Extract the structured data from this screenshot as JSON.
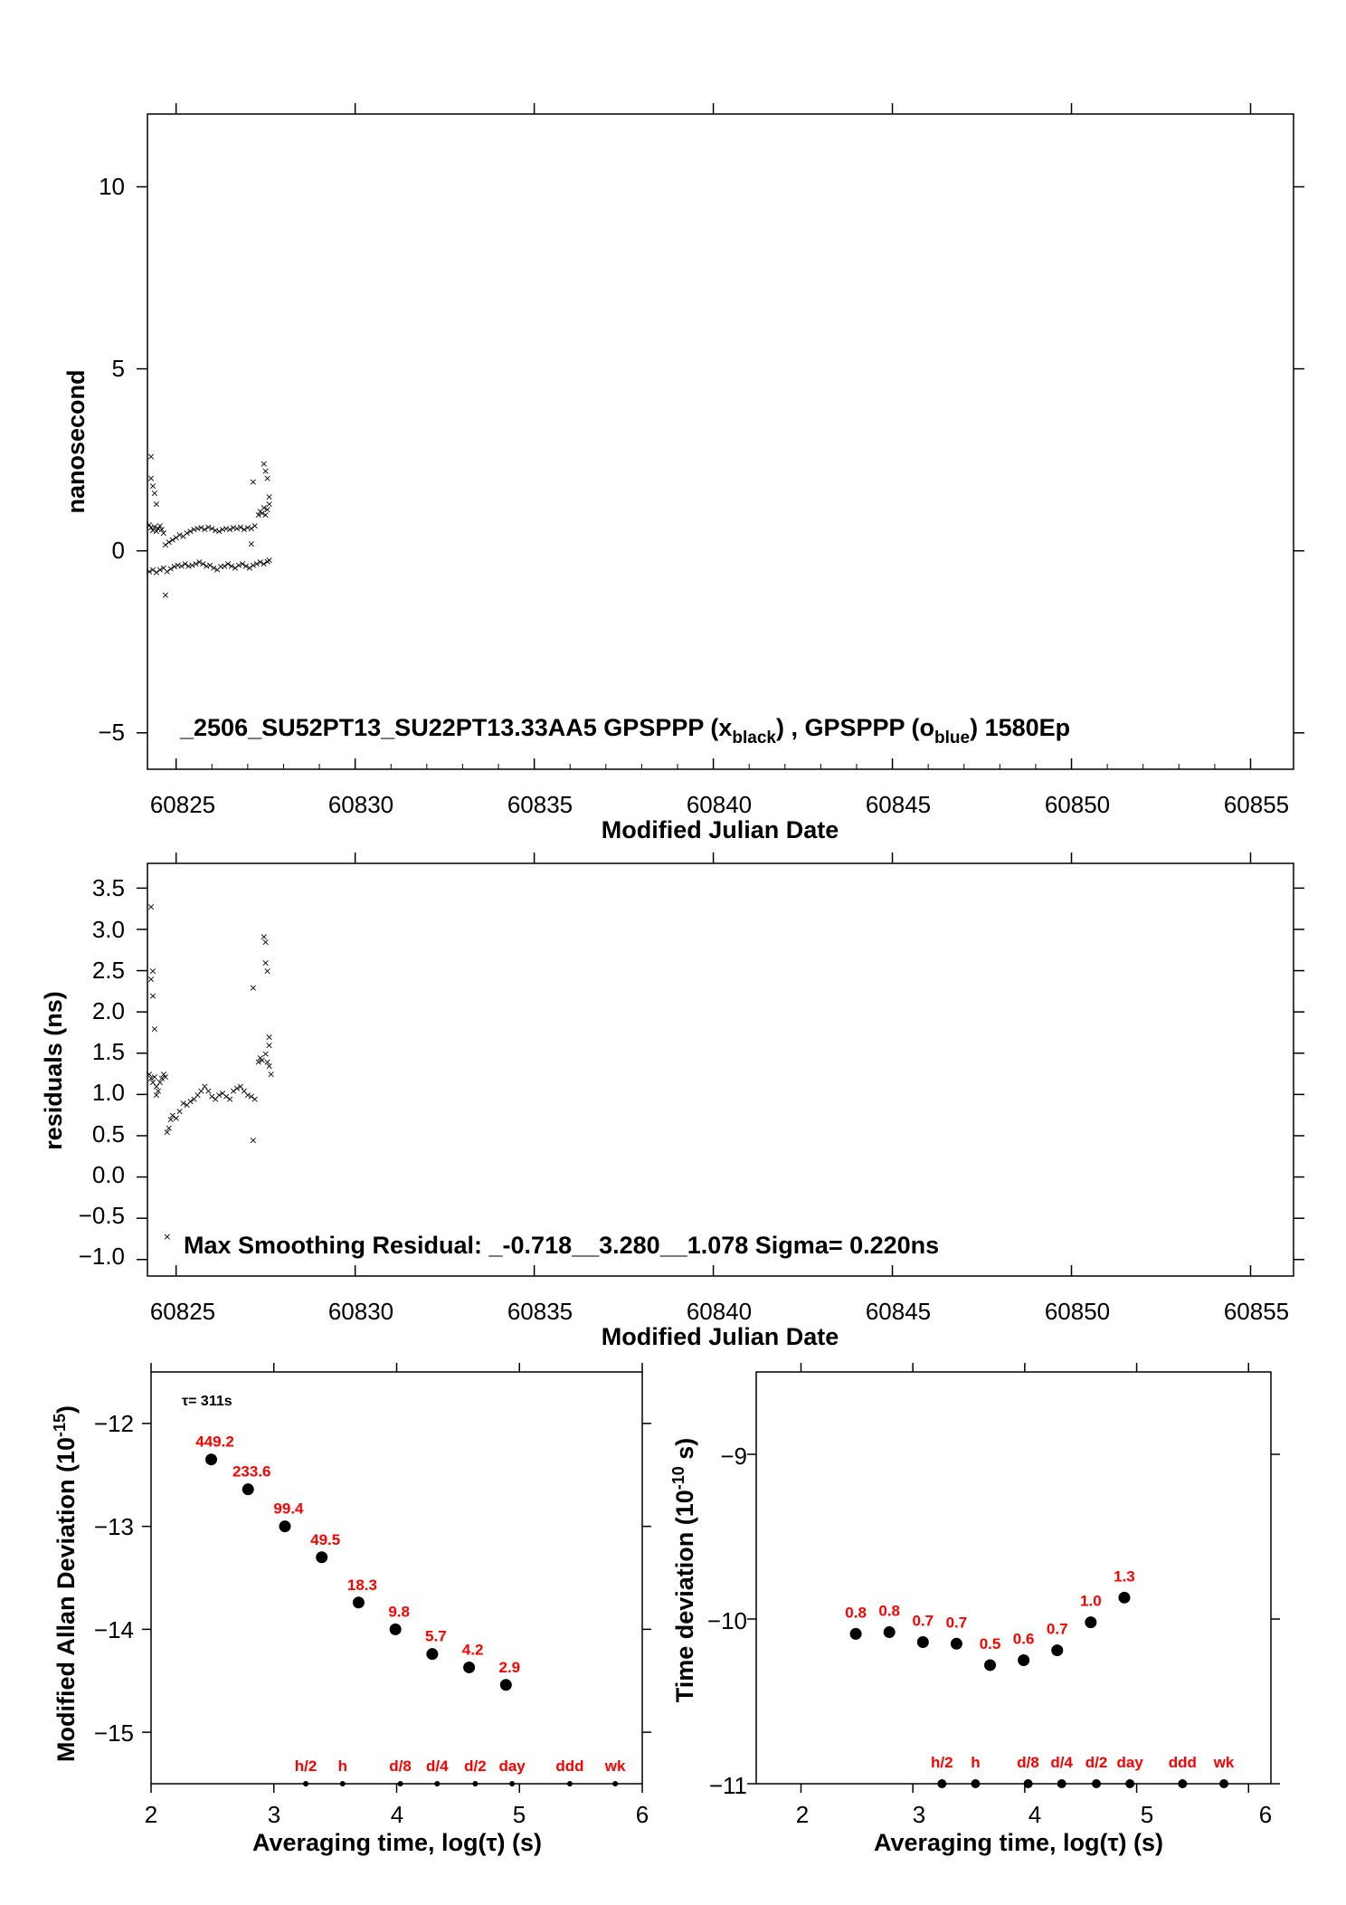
{
  "chart_data": [
    {
      "type": "scatter",
      "name": "phase",
      "xlabel": "Modified Julian Date",
      "ylabel": "nanosecond",
      "xlim": [
        60824.2,
        60856.2
      ],
      "ylim": [
        -6.0,
        12.0
      ],
      "xticks": [
        "60825",
        "60830",
        "60835",
        "60840",
        "60845",
        "60850",
        "60855"
      ],
      "yticks": [
        "−5",
        "0",
        "5",
        "10"
      ],
      "annotation": {
        "prefix": "_2506_SU52PT13_SU22PT13.33AA5     GPSPPP (x",
        "sub1": "black",
        "mid": ") ,  GPSPPP (o",
        "sub2": "blue",
        "suffix": ")  1580Ep"
      },
      "series": [
        {
          "color": "#000000",
          "marker": "x",
          "points": [
            [
              60824.25,
              0.72
            ],
            [
              60824.3,
              0.65
            ],
            [
              60824.35,
              0.58
            ],
            [
              60824.4,
              0.68
            ],
            [
              60824.45,
              0.55
            ],
            [
              60824.5,
              0.62
            ],
            [
              60824.55,
              0.7
            ],
            [
              60824.6,
              0.6
            ],
            [
              60824.65,
              0.5
            ],
            [
              60824.7,
              0.18
            ],
            [
              60824.8,
              0.25
            ],
            [
              60824.9,
              0.32
            ],
            [
              60825.0,
              0.38
            ],
            [
              60825.1,
              0.45
            ],
            [
              60825.2,
              0.42
            ],
            [
              60825.3,
              0.5
            ],
            [
              60825.4,
              0.55
            ],
            [
              60825.5,
              0.6
            ],
            [
              60825.6,
              0.62
            ],
            [
              60825.7,
              0.65
            ],
            [
              60825.8,
              0.6
            ],
            [
              60825.9,
              0.66
            ],
            [
              60826.0,
              0.62
            ],
            [
              60826.1,
              0.58
            ],
            [
              60826.2,
              0.55
            ],
            [
              60826.3,
              0.6
            ],
            [
              60826.4,
              0.62
            ],
            [
              60826.5,
              0.6
            ],
            [
              60826.6,
              0.65
            ],
            [
              60826.7,
              0.62
            ],
            [
              60826.8,
              0.66
            ],
            [
              60826.9,
              0.6
            ],
            [
              60827.0,
              0.65
            ],
            [
              60827.1,
              0.62
            ],
            [
              60827.2,
              0.7
            ],
            [
              60827.3,
              1.0
            ],
            [
              60827.35,
              1.1
            ],
            [
              60827.4,
              1.05
            ],
            [
              60827.45,
              1.2
            ],
            [
              60827.5,
              1.0
            ],
            [
              60827.55,
              1.15
            ],
            [
              60827.6,
              1.3
            ],
            [
              60824.3,
              2.6
            ],
            [
              60824.35,
              1.8
            ],
            [
              60824.3,
              2.0
            ],
            [
              60824.4,
              1.6
            ],
            [
              60824.45,
              1.3
            ],
            [
              60824.7,
              -1.2
            ],
            [
              60827.15,
              1.9
            ],
            [
              60827.45,
              2.4
            ],
            [
              60827.5,
              2.2
            ],
            [
              60827.55,
              2.0
            ],
            [
              60827.6,
              1.5
            ],
            [
              60827.1,
              0.2
            ]
          ]
        },
        {
          "color": "#3399ff",
          "marker": "x",
          "points": [
            [
              60824.25,
              -0.55
            ],
            [
              60824.35,
              -0.5
            ],
            [
              60824.45,
              -0.58
            ],
            [
              60824.55,
              -0.5
            ],
            [
              60824.65,
              -0.45
            ],
            [
              60824.75,
              -0.55
            ],
            [
              60824.85,
              -0.48
            ],
            [
              60824.95,
              -0.42
            ],
            [
              60825.05,
              -0.38
            ],
            [
              60825.15,
              -0.4
            ],
            [
              60825.25,
              -0.35
            ],
            [
              60825.35,
              -0.4
            ],
            [
              60825.45,
              -0.38
            ],
            [
              60825.55,
              -0.35
            ],
            [
              60825.65,
              -0.3
            ],
            [
              60825.75,
              -0.35
            ],
            [
              60825.85,
              -0.4
            ],
            [
              60825.95,
              -0.38
            ],
            [
              60826.05,
              -0.45
            ],
            [
              60826.15,
              -0.5
            ],
            [
              60826.25,
              -0.42
            ],
            [
              60826.35,
              -0.4
            ],
            [
              60826.45,
              -0.35
            ],
            [
              60826.55,
              -0.4
            ],
            [
              60826.65,
              -0.45
            ],
            [
              60826.75,
              -0.38
            ],
            [
              60826.85,
              -0.35
            ],
            [
              60826.95,
              -0.4
            ],
            [
              60827.05,
              -0.45
            ],
            [
              60827.15,
              -0.38
            ],
            [
              60827.25,
              -0.35
            ],
            [
              60827.35,
              -0.3
            ],
            [
              60827.45,
              -0.35
            ],
            [
              60827.55,
              -0.28
            ],
            [
              60827.6,
              -0.25
            ]
          ]
        }
      ]
    },
    {
      "type": "scatter",
      "name": "residuals",
      "xlabel": "Modified Julian Date",
      "ylabel": "residuals (ns)",
      "xlim": [
        60824.2,
        60856.2
      ],
      "ylim": [
        -1.2,
        3.8
      ],
      "xticks": [
        "60825",
        "60830",
        "60835",
        "60840",
        "60845",
        "60850",
        "60855"
      ],
      "yticks": [
        "−1.0",
        "−0.5",
        "0.0",
        "0.5",
        "1.0",
        "1.5",
        "2.0",
        "2.5",
        "3.0",
        "3.5"
      ],
      "annotation": "Max Smoothing Residual: _-0.718__3.280__1.078  Sigma= 0.220ns",
      "points": [
        [
          60824.25,
          1.25
        ],
        [
          60824.3,
          1.2
        ],
        [
          60824.35,
          1.15
        ],
        [
          60824.4,
          1.22
        ],
        [
          60824.45,
          1.1
        ],
        [
          60824.5,
          1.05
        ],
        [
          60824.55,
          1.15
        ],
        [
          60824.6,
          1.2
        ],
        [
          60824.65,
          1.25
        ],
        [
          60824.7,
          1.22
        ],
        [
          60824.75,
          0.55
        ],
        [
          60824.8,
          0.6
        ],
        [
          60824.85,
          0.7
        ],
        [
          60824.9,
          0.75
        ],
        [
          60825.0,
          0.72
        ],
        [
          60825.1,
          0.8
        ],
        [
          60825.2,
          0.9
        ],
        [
          60825.3,
          0.88
        ],
        [
          60825.4,
          0.92
        ],
        [
          60825.5,
          0.95
        ],
        [
          60825.6,
          1.0
        ],
        [
          60825.7,
          1.05
        ],
        [
          60825.8,
          1.1
        ],
        [
          60825.9,
          1.05
        ],
        [
          60826.0,
          0.98
        ],
        [
          60826.1,
          0.95
        ],
        [
          60826.2,
          1.0
        ],
        [
          60826.3,
          1.02
        ],
        [
          60826.4,
          0.98
        ],
        [
          60826.5,
          0.95
        ],
        [
          60826.6,
          1.05
        ],
        [
          60826.7,
          1.08
        ],
        [
          60826.8,
          1.1
        ],
        [
          60826.9,
          1.05
        ],
        [
          60827.0,
          1.0
        ],
        [
          60827.1,
          0.98
        ],
        [
          60827.2,
          0.95
        ],
        [
          60827.3,
          1.4
        ],
        [
          60827.35,
          1.45
        ],
        [
          60827.4,
          1.42
        ],
        [
          60827.5,
          1.5
        ],
        [
          60827.55,
          1.4
        ],
        [
          60827.6,
          1.35
        ],
        [
          60824.3,
          3.28
        ],
        [
          60824.3,
          2.4
        ],
        [
          60824.35,
          2.5
        ],
        [
          60824.35,
          2.2
        ],
        [
          60824.4,
          1.8
        ],
        [
          60824.45,
          1.0
        ],
        [
          60824.75,
          -0.72
        ],
        [
          60827.15,
          2.3
        ],
        [
          60827.15,
          0.45
        ],
        [
          60827.45,
          2.92
        ],
        [
          60827.5,
          2.85
        ],
        [
          60827.5,
          2.6
        ],
        [
          60827.55,
          2.5
        ],
        [
          60827.6,
          1.7
        ],
        [
          60827.6,
          1.6
        ],
        [
          60827.65,
          1.25
        ]
      ]
    },
    {
      "type": "scatter",
      "name": "mdev",
      "xlabel": "Averaging time, log(τ) (s)",
      "ylabel_main": "Modified Allan Deviation (10",
      "ylabel_sup": "-15",
      "ylabel_end": ")",
      "tau_note": "τ= 311s",
      "xlim": [
        2,
        6
      ],
      "ylim": [
        -15.5,
        -11.5
      ],
      "xticks": [
        "2",
        "3",
        "4",
        "5",
        "6"
      ],
      "yticks": [
        "−12",
        "−13",
        "−14",
        "−15"
      ],
      "points": [
        {
          "x": 2.49,
          "y": -12.35,
          "label": "449.2"
        },
        {
          "x": 2.79,
          "y": -12.64,
          "label": "233.6"
        },
        {
          "x": 3.09,
          "y": -13.0,
          "label": "99.4"
        },
        {
          "x": 3.39,
          "y": -13.3,
          "label": "49.5"
        },
        {
          "x": 3.69,
          "y": -13.74,
          "label": "18.3"
        },
        {
          "x": 3.99,
          "y": -14.0,
          "label": "9.8"
        },
        {
          "x": 4.29,
          "y": -14.24,
          "label": "5.7"
        },
        {
          "x": 4.59,
          "y": -14.37,
          "label": "4.2"
        },
        {
          "x": 4.89,
          "y": -14.54,
          "label": "2.9"
        }
      ],
      "time_marks": [
        {
          "x": 3.26,
          "label": "h/2"
        },
        {
          "x": 3.56,
          "label": "h"
        },
        {
          "x": 4.03,
          "label": "d/8"
        },
        {
          "x": 4.33,
          "label": "d/4"
        },
        {
          "x": 4.64,
          "label": "d/2"
        },
        {
          "x": 4.94,
          "label": "day"
        },
        {
          "x": 5.41,
          "label": "ddd"
        },
        {
          "x": 5.78,
          "label": "wk"
        }
      ]
    },
    {
      "type": "scatter",
      "name": "tdev",
      "xlabel": "Averaging time, log(τ) (s)",
      "ylabel_main": "Time deviation (10",
      "ylabel_sup": "-10",
      "ylabel_end": " s)",
      "xlim": [
        1.6,
        6.2
      ],
      "ylim": [
        -11.0,
        -8.5
      ],
      "xticks": [
        "2",
        "3",
        "4",
        "5",
        "6"
      ],
      "yticks": [
        "−9",
        "−10",
        "−11"
      ],
      "points": [
        {
          "x": 2.49,
          "y": -10.09,
          "label": "0.8"
        },
        {
          "x": 2.79,
          "y": -10.08,
          "label": "0.8"
        },
        {
          "x": 3.09,
          "y": -10.14,
          "label": "0.7"
        },
        {
          "x": 3.39,
          "y": -10.15,
          "label": "0.7"
        },
        {
          "x": 3.69,
          "y": -10.28,
          "label": "0.5"
        },
        {
          "x": 3.99,
          "y": -10.25,
          "label": "0.6"
        },
        {
          "x": 4.29,
          "y": -10.19,
          "label": "0.7"
        },
        {
          "x": 4.59,
          "y": -10.02,
          "label": "1.0"
        },
        {
          "x": 4.89,
          "y": -9.87,
          "label": "1.3"
        }
      ],
      "time_marks": [
        {
          "x": 3.26,
          "label": "h/2"
        },
        {
          "x": 3.56,
          "label": "h"
        },
        {
          "x": 4.03,
          "label": "d/8"
        },
        {
          "x": 4.33,
          "label": "d/4"
        },
        {
          "x": 4.64,
          "label": "d/2"
        },
        {
          "x": 4.94,
          "label": "day"
        },
        {
          "x": 5.41,
          "label": "ddd"
        },
        {
          "x": 5.78,
          "label": "wk"
        }
      ]
    }
  ]
}
